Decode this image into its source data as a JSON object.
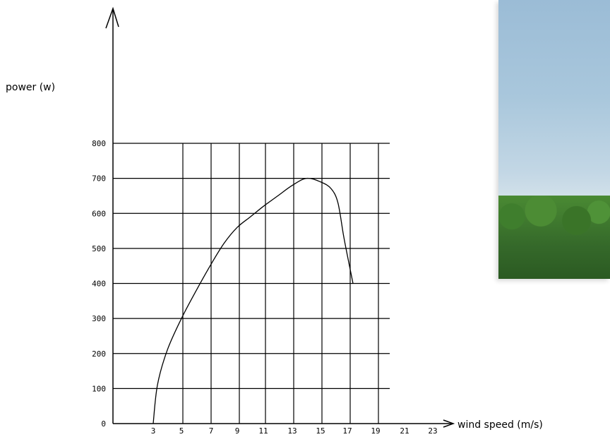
{
  "chart_data": {
    "type": "line",
    "ylabel": "power (w)",
    "xlabel": "wind speed (m/s)",
    "x_tick_labels": [
      "3",
      "5",
      "7",
      "9",
      "11",
      "13",
      "15",
      "17",
      "19",
      "21",
      "23"
    ],
    "y_tick_labels": [
      "0",
      "100",
      "200",
      "300",
      "400",
      "500",
      "600",
      "700",
      "800"
    ],
    "ylim": [
      0,
      800
    ],
    "grid": true,
    "series": [
      {
        "values": [
          {
            "x": 3.0,
            "y": 0
          },
          {
            "x": 3.3,
            "y": 110
          },
          {
            "x": 4.0,
            "y": 210
          },
          {
            "x": 5.0,
            "y": 300
          },
          {
            "x": 6.0,
            "y": 380
          },
          {
            "x": 7.0,
            "y": 455
          },
          {
            "x": 8.0,
            "y": 515
          },
          {
            "x": 9.0,
            "y": 560
          },
          {
            "x": 10.0,
            "y": 590
          },
          {
            "x": 11.0,
            "y": 620
          },
          {
            "x": 12.0,
            "y": 650
          },
          {
            "x": 13.0,
            "y": 680
          },
          {
            "x": 14.0,
            "y": 700
          },
          {
            "x": 15.0,
            "y": 690
          },
          {
            "x": 15.8,
            "y": 670
          },
          {
            "x": 16.3,
            "y": 630
          },
          {
            "x": 16.7,
            "y": 540
          },
          {
            "x": 17.0,
            "y": 480
          },
          {
            "x": 17.4,
            "y": 400
          }
        ]
      }
    ]
  },
  "photo": {
    "description_icon": "wind-turbine-photo-icon"
  }
}
